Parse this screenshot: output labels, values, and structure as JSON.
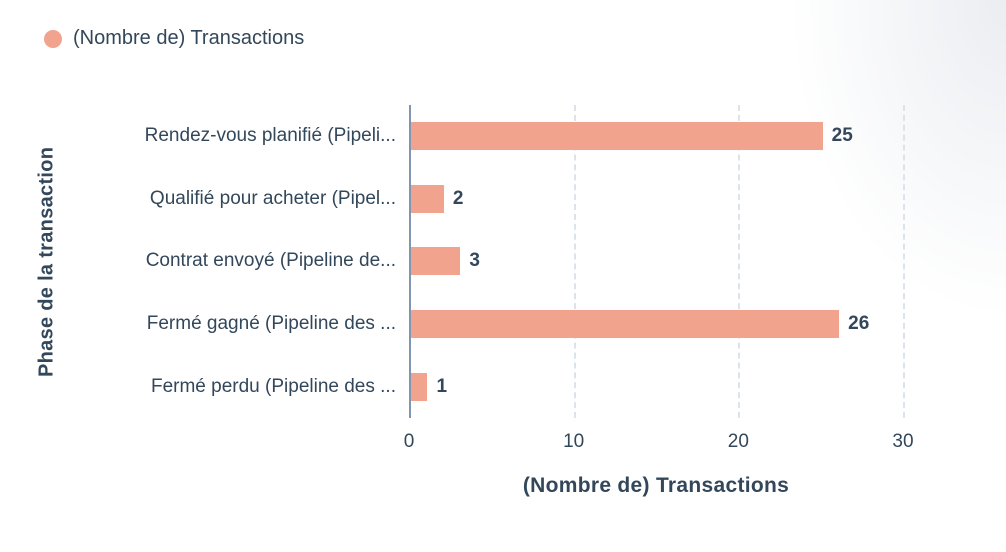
{
  "legend": {
    "label": "(Nombre de) Transactions",
    "marker": "series-dot"
  },
  "chart_data": {
    "type": "bar",
    "orientation": "horizontal",
    "series_name": "(Nombre de) Transactions",
    "categories": [
      "Rendez-vous planifié (Pipeli...",
      "Qualifié pour acheter (Pipel...",
      "Contrat envoyé (Pipeline de...",
      "Fermé gagné (Pipeline des ...",
      "Fermé perdu (Pipeline des ..."
    ],
    "values": [
      25,
      2,
      3,
      26,
      1
    ],
    "value_labels": [
      "25",
      "2",
      "3",
      "26",
      "1"
    ],
    "xlabel": "(Nombre de) Transactions",
    "ylabel": "Phase de la transaction",
    "xlim": [
      0,
      30
    ],
    "xticks": [
      "0",
      "10",
      "20",
      "30"
    ],
    "grid": "vertical-dashed",
    "legend_position": "top-left"
  },
  "colors": {
    "bar": "#F2A38E",
    "text": "#33475B",
    "axis_line": "#8096AE",
    "gridline": "#DCE3EA",
    "background": "#FFFFFF"
  }
}
